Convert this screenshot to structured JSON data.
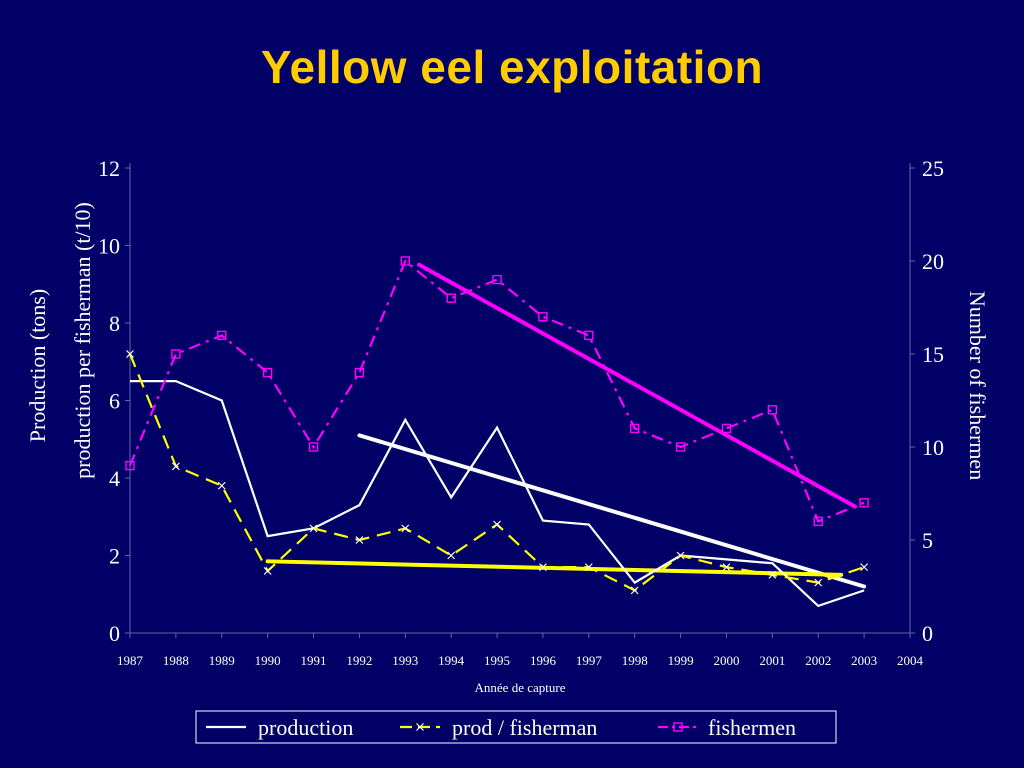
{
  "slide": {
    "title": "Yellow eel exploitation"
  },
  "colors": {
    "background": "#000066",
    "title": "#FFCC00",
    "production": "#FFFFFF",
    "prod_per_fisherman": "#FFFF00",
    "fishermen": "#FF00FF",
    "text": "#FFFFFF"
  },
  "chart_data": {
    "type": "line",
    "title": "",
    "xlabel": "Année de capture",
    "ylabel_left": [
      "Production (tons)",
      "production per fisherman (t/10)"
    ],
    "ylabel_right": "Number of fishermen",
    "x": [
      1987,
      1988,
      1989,
      1990,
      1991,
      1992,
      1993,
      1994,
      1995,
      1996,
      1997,
      1998,
      1999,
      2000,
      2001,
      2002,
      2003
    ],
    "x_ticks": [
      "1987",
      "1988",
      "1989",
      "1990",
      "1991",
      "1992",
      "1993",
      "1994",
      "1995",
      "1996",
      "1997",
      "1998",
      "1999",
      "2000",
      "2001",
      "2002",
      "2003",
      "2004"
    ],
    "ylim_left": [
      0,
      12
    ],
    "yticks_left": [
      "0",
      "2",
      "4",
      "6",
      "8",
      "10",
      "12"
    ],
    "ylim_right": [
      0,
      25
    ],
    "yticks_right": [
      "0",
      "5",
      "10",
      "15",
      "20",
      "25"
    ],
    "series": [
      {
        "name": "production",
        "axis": "left",
        "style": "solid",
        "marker": "none",
        "values": [
          6.5,
          6.5,
          6.0,
          2.5,
          2.7,
          3.3,
          5.5,
          3.5,
          5.3,
          2.9,
          2.8,
          1.3,
          2.0,
          1.9,
          1.8,
          0.7,
          1.1
        ]
      },
      {
        "name": "prod / fisherman",
        "axis": "left",
        "style": "dashed",
        "marker": "x",
        "values": [
          7.2,
          4.3,
          3.8,
          1.6,
          2.7,
          2.4,
          2.7,
          2.0,
          2.8,
          1.7,
          1.7,
          1.1,
          2.0,
          1.7,
          1.5,
          1.3,
          1.7
        ]
      },
      {
        "name": "fishermen",
        "axis": "right",
        "style": "dashdot",
        "marker": "square",
        "values": [
          9,
          15,
          16,
          14,
          10,
          14,
          20,
          18,
          19,
          17,
          16,
          11,
          10,
          11,
          12,
          6,
          7
        ]
      }
    ],
    "trendlines": [
      {
        "series": "production",
        "axis": "left",
        "from": [
          1992,
          5.1
        ],
        "to": [
          2003,
          1.2
        ]
      },
      {
        "series": "prod / fisherman",
        "axis": "left",
        "from": [
          1990,
          1.85
        ],
        "to": [
          2002.5,
          1.5
        ]
      },
      {
        "series": "fishermen",
        "axis": "right",
        "from": [
          1993.3,
          19.8
        ],
        "to": [
          2002.8,
          6.8
        ]
      }
    ],
    "legend": {
      "position": "bottom",
      "entries": [
        "production",
        "prod / fisherman",
        "fishermen"
      ]
    }
  }
}
